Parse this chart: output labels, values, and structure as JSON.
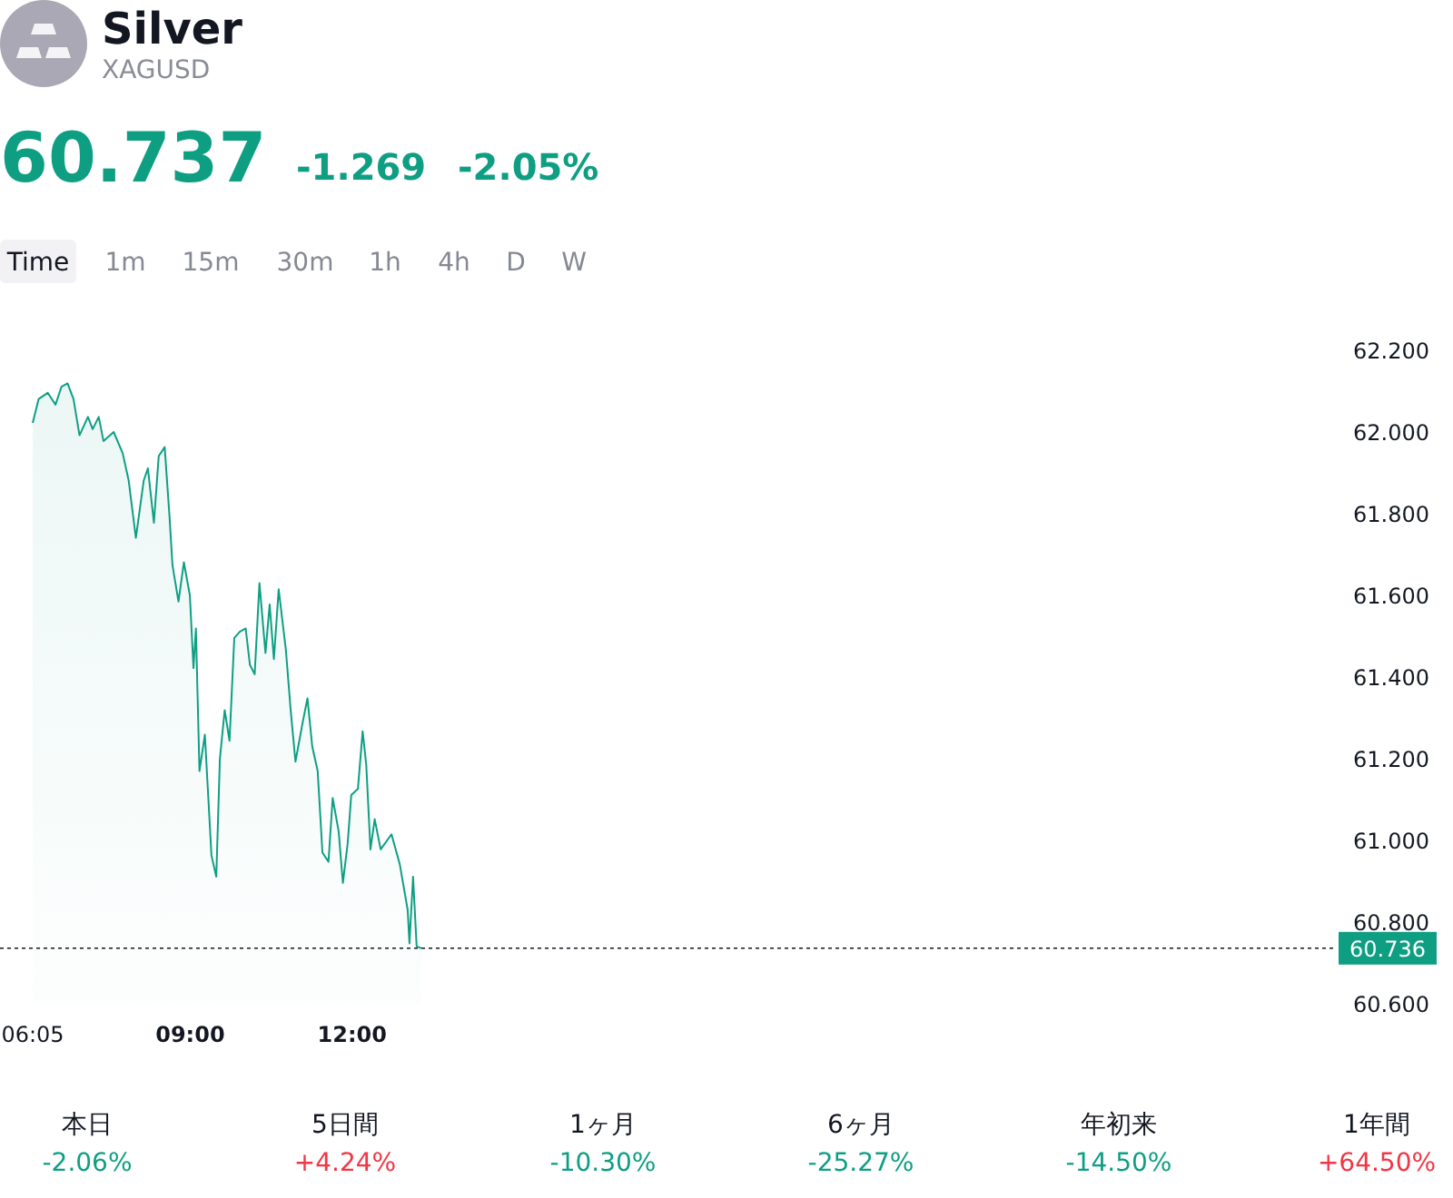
{
  "chart_data": {
    "type": "area",
    "title": "Silver",
    "subtitle": "XAGUSD",
    "annotations": [
      "60.737",
      "-1.269",
      "-2.05%",
      "Time",
      "1m",
      "15m",
      "30m",
      "1h",
      "4h",
      "D",
      "W",
      "本日",
      "-2.06%",
      "5日間",
      "+4.24%",
      "1ヶ月",
      "-10.30%",
      "6ヶ月",
      "-25.27%",
      "年初来",
      "-14.50%",
      "1年間",
      "+64.50%"
    ],
    "xlim": [
      6.083,
      30
    ],
    "xticks": [
      {
        "value": 6.083,
        "label": "06:05"
      },
      {
        "value": 9,
        "label": "09:00"
      },
      {
        "value": 12,
        "label": "12:00"
      }
    ],
    "ylim": [
      60.6,
      62.2
    ],
    "yticks": [
      {
        "value": 60.6,
        "label": "60.600"
      },
      {
        "value": 60.8,
        "label": "60.800"
      },
      {
        "value": 61.0,
        "label": "61.000"
      },
      {
        "value": 61.2,
        "label": "61.200"
      },
      {
        "value": 61.4,
        "label": "61.400"
      },
      {
        "value": 61.6,
        "label": "61.600"
      },
      {
        "value": 61.8,
        "label": "61.800"
      },
      {
        "value": 62.0,
        "label": "62.000"
      },
      {
        "value": 62.2,
        "label": "62.200"
      }
    ],
    "ref_lines": [
      {
        "axis": "y",
        "value": 60.736,
        "label": "60.736",
        "color": "#131722",
        "line_style": "dotted"
      }
    ],
    "series": [
      {
        "color": "#0e9f83",
        "x": [
          6.083,
          6.194,
          6.361,
          6.506,
          6.617,
          6.728,
          6.839,
          6.95,
          7.106,
          7.194,
          7.306,
          7.394,
          7.583,
          7.75,
          7.861,
          7.994,
          8.139,
          8.217,
          8.328,
          8.417,
          8.528,
          8.617,
          8.672,
          8.783,
          8.883,
          8.994,
          9.061,
          9.106,
          9.172,
          9.272,
          9.394,
          9.483,
          9.55,
          9.639,
          9.728,
          9.817,
          9.917,
          10.028,
          10.106,
          10.194,
          10.283,
          10.394,
          10.472,
          10.55,
          10.639,
          10.772,
          10.861,
          10.95,
          11.083,
          11.172,
          11.261,
          11.361,
          11.45,
          11.561,
          11.639,
          11.75,
          11.828,
          11.917,
          11.983,
          12.106,
          12.194,
          12.261,
          12.339,
          12.417,
          12.528,
          12.728,
          12.883,
          13.028,
          13.061,
          13.128,
          13.194,
          13.283
        ],
        "values": [
          62.022,
          62.081,
          62.096,
          62.067,
          62.111,
          62.119,
          62.081,
          61.992,
          62.037,
          62.007,
          62.037,
          61.978,
          62.0,
          61.948,
          61.881,
          61.741,
          61.881,
          61.911,
          61.778,
          61.941,
          61.963,
          61.793,
          61.674,
          61.585,
          61.681,
          61.6,
          61.422,
          61.519,
          61.17,
          61.259,
          60.963,
          60.911,
          61.2,
          61.319,
          61.244,
          61.496,
          61.511,
          61.519,
          61.43,
          61.407,
          61.63,
          61.459,
          61.578,
          61.444,
          61.615,
          61.467,
          61.319,
          61.193,
          61.289,
          61.348,
          61.23,
          61.17,
          60.97,
          60.948,
          61.104,
          61.022,
          60.896,
          60.993,
          61.111,
          61.126,
          61.267,
          61.185,
          60.978,
          61.052,
          60.978,
          61.015,
          60.941,
          60.83,
          60.748,
          60.911,
          60.741,
          60.736
        ]
      }
    ]
  }
}
